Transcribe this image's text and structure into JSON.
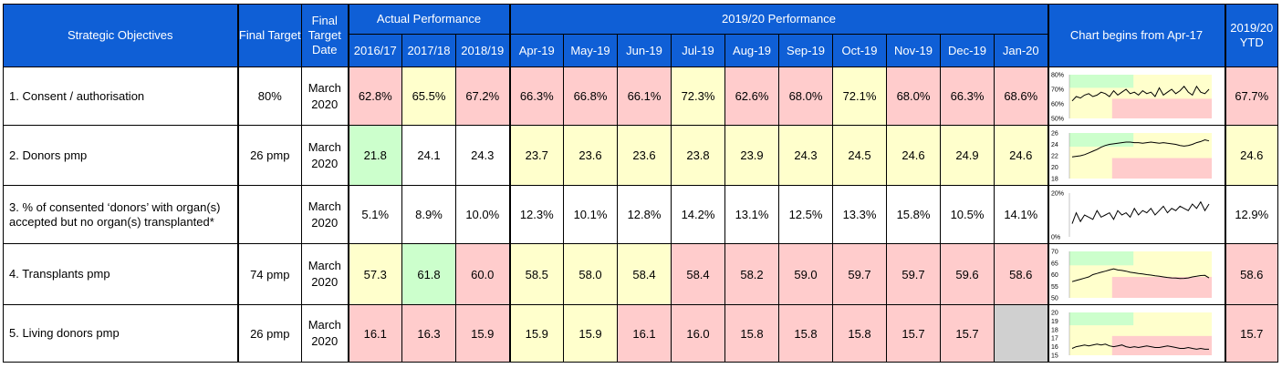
{
  "colors": {
    "header_bg": "#0f5fd6",
    "red": "#ffcccc",
    "yellow": "#ffffcc",
    "green": "#ccffcc",
    "grey": "#d0d0d0"
  },
  "headers": {
    "objectives": "Strategic Objectives",
    "final_target": "Final Target",
    "final_target_date": "Final Target Date",
    "actual": "Actual Performance",
    "performance": "2019/20 Performance",
    "chart": "Chart begins from Apr-17",
    "ytd": "2019/20 YTD",
    "years": [
      "2016/17",
      "2017/18",
      "2018/19"
    ],
    "months": [
      "Apr-19",
      "May-19",
      "Jun-19",
      "Jul-19",
      "Aug-19",
      "Sep-19",
      "Oct-19",
      "Nov-19",
      "Dec-19",
      "Jan-20"
    ]
  },
  "rows": [
    {
      "objective": "1. Consent / authorisation",
      "target": "80%",
      "date": "March 2020",
      "actual": [
        "62.8%",
        "65.5%",
        "67.2%"
      ],
      "actual_status": [
        "r",
        "y",
        "r"
      ],
      "monthly": [
        "66.3%",
        "66.8%",
        "66.1%",
        "72.3%",
        "62.6%",
        "68.0%",
        "72.1%",
        "68.0%",
        "66.3%",
        "68.6%"
      ],
      "monthly_status": [
        "r",
        "r",
        "r",
        "y",
        "r",
        "r",
        "y",
        "r",
        "r",
        "r"
      ],
      "ytd": "67.7%",
      "ytd_status": "r",
      "chart": {
        "ticks": [
          "80%",
          "70%",
          "60%",
          "50%"
        ],
        "ymin": 50,
        "ymax": 80,
        "values": [
          62,
          65,
          64,
          66,
          67,
          65,
          66,
          68,
          67,
          65,
          69,
          66,
          68,
          70,
          67,
          68,
          66,
          69,
          67,
          68,
          65,
          71,
          66,
          68,
          70,
          67,
          69,
          72,
          68,
          66,
          72,
          68,
          67,
          70
        ]
      }
    },
    {
      "objective": "2. Donors pmp",
      "target": "26 pmp",
      "date": "March 2020",
      "actual": [
        "21.8",
        "24.1",
        "24.3"
      ],
      "actual_status": [
        "g",
        "w",
        "w"
      ],
      "monthly": [
        "23.7",
        "23.6",
        "23.6",
        "23.8",
        "23.9",
        "24.3",
        "24.5",
        "24.6",
        "24.9",
        "24.6"
      ],
      "monthly_status": [
        "y",
        "y",
        "y",
        "y",
        "y",
        "y",
        "y",
        "y",
        "y",
        "y"
      ],
      "ytd": "24.6",
      "ytd_status": "y",
      "chart": {
        "ticks": [
          "26",
          "24",
          "22",
          "20",
          "18"
        ],
        "ymin": 18,
        "ymax": 26,
        "values": [
          21.8,
          21.9,
          22.0,
          22.2,
          22.5,
          22.8,
          23.1,
          23.5,
          23.8,
          24.0,
          24.1,
          24.2,
          24.3,
          24.4,
          24.4,
          24.3,
          24.3,
          24.2,
          24.3,
          24.4,
          24.3,
          24.2,
          24.3,
          24.2,
          24.1,
          24.0,
          23.8,
          23.7,
          23.8,
          24.0,
          24.3,
          24.5,
          24.8,
          24.6
        ]
      }
    },
    {
      "objective": "3. % of consented ‘donors’ with organ(s) accepted but no organ(s) transplanted*",
      "target": "",
      "date": "March 2020",
      "actual": [
        "5.1%",
        "8.9%",
        "10.0%"
      ],
      "actual_status": [
        "w",
        "w",
        "w"
      ],
      "monthly": [
        "12.3%",
        "10.1%",
        "12.8%",
        "14.2%",
        "13.1%",
        "12.5%",
        "13.3%",
        "15.8%",
        "10.5%",
        "14.1%"
      ],
      "monthly_status": [
        "w",
        "w",
        "w",
        "w",
        "w",
        "w",
        "w",
        "w",
        "w",
        "w"
      ],
      "ytd": "12.9%",
      "ytd_status": "w",
      "chart": {
        "ticks": [
          "20%",
          "0%"
        ],
        "ymin": 0,
        "ymax": 20,
        "values": [
          6,
          11,
          7,
          10,
          9,
          8,
          12,
          9,
          10,
          11,
          8,
          12,
          10,
          11,
          9,
          13,
          10,
          12,
          11,
          13,
          10,
          12,
          14,
          11,
          13,
          12,
          14,
          13,
          12,
          15,
          13,
          16,
          12,
          15
        ]
      }
    },
    {
      "objective": "4. Transplants pmp",
      "target": "74 pmp",
      "date": "March 2020",
      "actual": [
        "57.3",
        "61.8",
        "60.0"
      ],
      "actual_status": [
        "y",
        "g",
        "r"
      ],
      "monthly": [
        "58.5",
        "58.0",
        "58.4",
        "58.4",
        "58.2",
        "59.0",
        "59.7",
        "59.7",
        "59.6",
        "58.6"
      ],
      "monthly_status": [
        "y",
        "y",
        "y",
        "r",
        "r",
        "r",
        "r",
        "r",
        "r",
        "r"
      ],
      "ytd": "58.6",
      "ytd_status": "r",
      "chart": {
        "ticks": [
          "70",
          "65",
          "60",
          "55",
          "50"
        ],
        "ymin": 50,
        "ymax": 70,
        "values": [
          57,
          57.5,
          58,
          58.5,
          59,
          60,
          60.5,
          61,
          61.5,
          62,
          62.5,
          62,
          61.8,
          61.5,
          61,
          60.8,
          60.5,
          60.3,
          60,
          59.8,
          59.5,
          59.3,
          59,
          58.8,
          58.6,
          58.5,
          58.3,
          58.4,
          58.6,
          59,
          59.3,
          59.6,
          59.7,
          58.6
        ]
      }
    },
    {
      "objective": "5. Living donors pmp",
      "target": "26 pmp",
      "date": "March 2020",
      "actual": [
        "16.1",
        "16.3",
        "15.9"
      ],
      "actual_status": [
        "r",
        "r",
        "r"
      ],
      "monthly": [
        "15.9",
        "15.9",
        "16.1",
        "16.0",
        "15.8",
        "15.8",
        "15.8",
        "15.7",
        "15.7",
        ""
      ],
      "monthly_status": [
        "y",
        "y",
        "r",
        "r",
        "r",
        "r",
        "r",
        "r",
        "r",
        "gr"
      ],
      "ytd": "15.7",
      "ytd_status": "r",
      "chart": {
        "ticks": [
          "20",
          "19",
          "18",
          "17",
          "16",
          "15"
        ],
        "ymin": 15,
        "ymax": 20,
        "values": [
          15.8,
          16.0,
          16.1,
          16.2,
          16.1,
          16.2,
          16.3,
          16.2,
          16.3,
          16.1,
          16.0,
          16.1,
          16.2,
          16.0,
          15.9,
          16.0,
          15.9,
          16.0,
          16.1,
          16.0,
          15.9,
          15.9,
          16.0,
          16.1,
          16.0,
          15.9,
          15.8,
          15.8,
          15.9,
          15.8,
          15.7,
          15.8,
          15.7,
          15.7
        ]
      }
    }
  ]
}
